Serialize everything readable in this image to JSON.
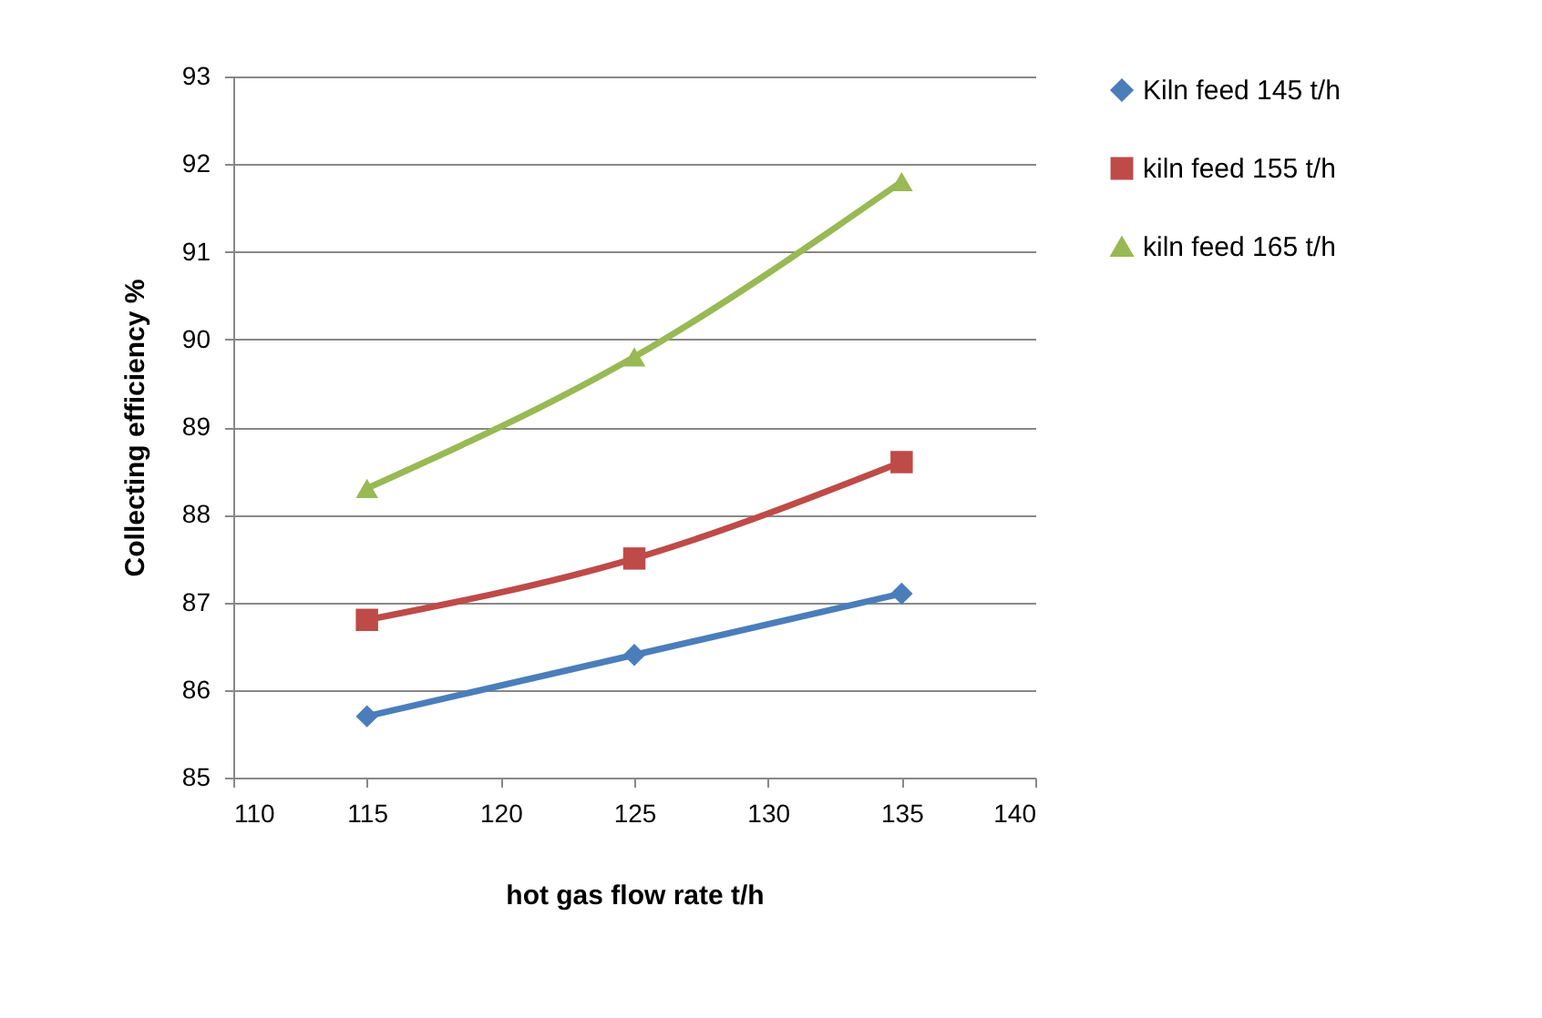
{
  "chart_data": {
    "type": "line",
    "xlabel": "hot gas flow rate t/h",
    "ylabel": "Collecting efficiency %",
    "x": [
      115,
      125,
      135
    ],
    "series": [
      {
        "name": "Kiln feed 145 t/h",
        "color": "#4a7ebb",
        "values": [
          85.7,
          86.4,
          87.1
        ],
        "marker": "diamond"
      },
      {
        "name": "kiln feed 155 t/h",
        "color": "#be4b48",
        "values": [
          86.8,
          87.5,
          88.6
        ],
        "marker": "square"
      },
      {
        "name": "kiln feed 165 t/h",
        "color": "#98b954",
        "values": [
          88.3,
          89.8,
          91.8
        ],
        "marker": "triangle"
      }
    ],
    "xlim": [
      110,
      140
    ],
    "xticks": [
      110,
      115,
      120,
      125,
      130,
      135,
      140
    ],
    "ylim": [
      85,
      93
    ],
    "yticks": [
      85,
      86,
      87,
      88,
      89,
      90,
      91,
      92,
      93
    ],
    "grid": "y",
    "legend": "right",
    "line_style": "solid"
  }
}
